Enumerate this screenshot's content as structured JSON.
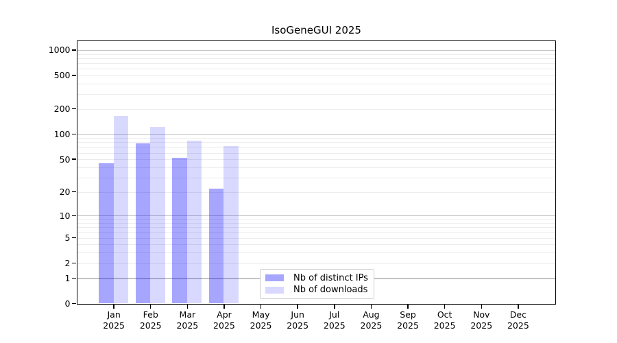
{
  "title": "IsoGeneGUI 2025",
  "chart_data": {
    "type": "bar",
    "title": "IsoGeneGUI 2025",
    "categories": [
      "Jan",
      "Feb",
      "Mar",
      "Apr",
      "May",
      "Jun",
      "Jul",
      "Aug",
      "Sep",
      "Oct",
      "Nov",
      "Dec"
    ],
    "category_year": "2025",
    "series": [
      {
        "name": "Nb of distinct IPs",
        "color": "rgba(0,0,255,0.35)",
        "color_on_white": "#a6a6ff",
        "values": [
          45,
          78,
          52,
          22,
          0,
          0,
          0,
          0,
          0,
          0,
          0,
          0
        ]
      },
      {
        "name": "Nb of downloads",
        "color": "rgba(0,0,255,0.15)",
        "color_on_white": "#d9d9ff",
        "values": [
          165,
          123,
          84,
          72,
          0,
          0,
          0,
          0,
          0,
          0,
          0,
          0
        ]
      }
    ],
    "yscale": "log1p",
    "yticks": [
      0,
      1,
      2,
      5,
      10,
      20,
      50,
      100,
      200,
      500,
      1000
    ],
    "major_yticks": [
      1,
      10,
      100,
      1000
    ],
    "minor_ytick_subs": [
      2,
      3,
      4,
      5,
      6,
      7,
      8,
      9
    ],
    "ylim": [
      0,
      1260
    ],
    "grid": "horizontal",
    "legend_position": "inside-bottom-center",
    "colors": {
      "major_grid": "#c3c3c3",
      "minor_grid": "#ececec",
      "axis": "#000000",
      "background": "#ffffff"
    }
  }
}
